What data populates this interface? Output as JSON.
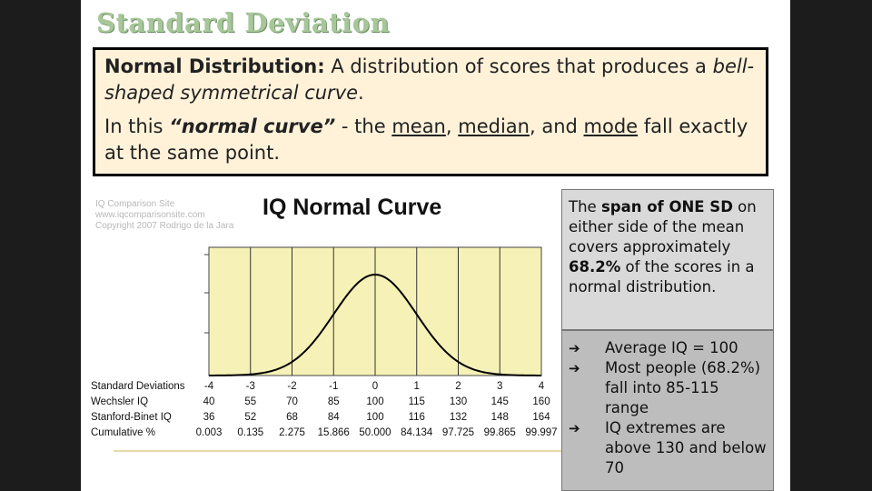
{
  "slide": {
    "title": "Standard Deviation",
    "definition": {
      "term": "Normal Distribution:",
      "text1": " A distribution of scores that produces a ",
      "italic1": "bell-shaped symmetrical curve",
      "text2": ".",
      "line2_a": "In this ",
      "line2_quote": "“normal curve”",
      "line2_b": " - the ",
      "mean": "mean",
      "comma1": ", ",
      "median": "median",
      "and": ", and ",
      "mode": "mode",
      "line2_end": " fall exactly at the same point."
    },
    "side_box": {
      "t1": "The ",
      "b1": "span of ONE SD",
      "t2": " on either side of the mean covers approximately ",
      "b2": "68.2%",
      "t3": " of the scores in a normal distribution."
    },
    "bullets": [
      "Average IQ = 100",
      "Most people (68.2%) fall into 85-115 range",
      "IQ extremes are above 130 and below 70"
    ],
    "bullet_arrow": "➔"
  },
  "chart": {
    "credits": [
      "IQ Comparison Site",
      "www.iqcomparisonsite.com",
      "Copyright 2007 Rodrigo de la Jara"
    ],
    "title": "IQ Normal Curve",
    "plot_bg": "#f6f2b7",
    "curve_color": "#000000",
    "rows": [
      {
        "label": "Standard Deviations",
        "values": [
          "-4",
          "-3",
          "-2",
          "-1",
          "0",
          "1",
          "2",
          "3",
          "4"
        ]
      },
      {
        "label": "Wechsler IQ",
        "values": [
          "40",
          "55",
          "70",
          "85",
          "100",
          "115",
          "130",
          "145",
          "160"
        ]
      },
      {
        "label": "Stanford-Binet IQ",
        "values": [
          "36",
          "52",
          "68",
          "84",
          "100",
          "116",
          "132",
          "148",
          "164"
        ]
      },
      {
        "label": "Cumulative %",
        "values": [
          "0.003",
          "0.135",
          "2.275",
          "15.866",
          "50.000",
          "84.134",
          "97.725",
          "99.865",
          "99.997"
        ]
      }
    ]
  },
  "chart_data": {
    "type": "line",
    "title": "IQ Normal Curve",
    "x_label_rows": [
      "Standard Deviations",
      "Wechsler IQ",
      "Stanford-Binet IQ",
      "Cumulative %"
    ],
    "x": [
      -4,
      -3,
      -2,
      -1,
      0,
      1,
      2,
      3,
      4
    ],
    "xlim": [
      -4,
      4
    ],
    "distribution": "normal",
    "mean": 0,
    "sd": 1,
    "grid_x": true
  }
}
